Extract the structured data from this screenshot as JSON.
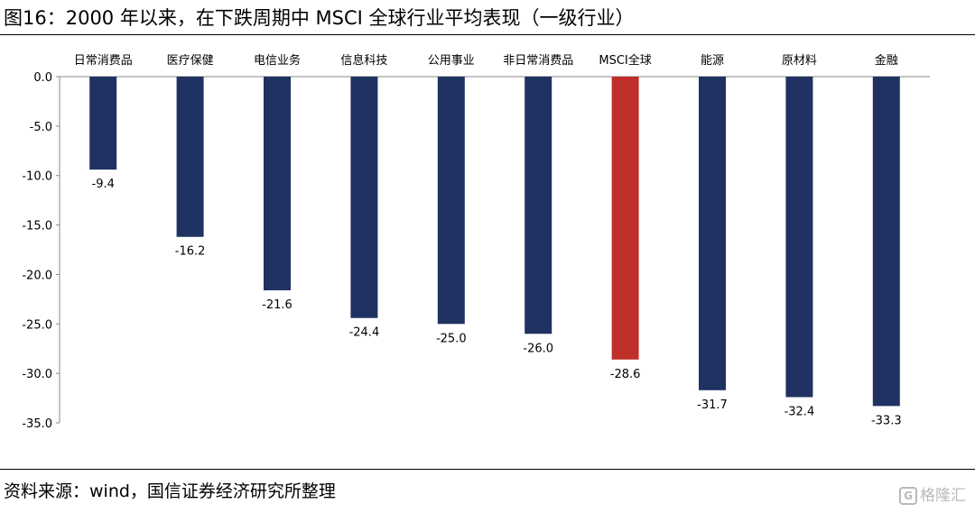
{
  "title": "图16：2000 年以来，在下跌周期中 MSCI 全球行业平均表现（一级行业）",
  "source": "资料来源：wind，国信证券经济研究所整理",
  "watermark": {
    "logo": "G",
    "text": "格隆汇"
  },
  "colors": {
    "default_bar": "#1f3261",
    "highlight_bar": "#c0302a",
    "axis": "#888888"
  },
  "chart_data": {
    "type": "bar",
    "categories": [
      "日常消费品",
      "医疗保健",
      "电信业务",
      "信息科技",
      "公用事业",
      "非日常消费品",
      "MSCI全球",
      "能源",
      "原材料",
      "金融"
    ],
    "values": [
      -9.4,
      -16.2,
      -21.6,
      -24.4,
      -25.0,
      -26.0,
      -28.6,
      -31.7,
      -32.4,
      -33.3
    ],
    "value_labels": [
      "-9.4",
      "-16.2",
      "-21.6",
      "-24.4",
      "-25.0",
      "-26.0",
      "-28.6",
      "-31.7",
      "-32.4",
      "-33.3"
    ],
    "highlight_category": "MSCI全球",
    "title": "",
    "xlabel": "",
    "ylabel": "",
    "ylim": [
      -35.0,
      0.0
    ],
    "yticks": [
      0.0,
      -5.0,
      -10.0,
      -15.0,
      -20.0,
      -25.0,
      -30.0,
      -35.0
    ],
    "ytick_labels": [
      "0.0",
      "-5.0",
      "-10.0",
      "-15.0",
      "-20.0",
      "-25.0",
      "-30.0",
      "-35.0"
    ],
    "category_axis_position": "top",
    "grid": false,
    "legend": "none"
  }
}
